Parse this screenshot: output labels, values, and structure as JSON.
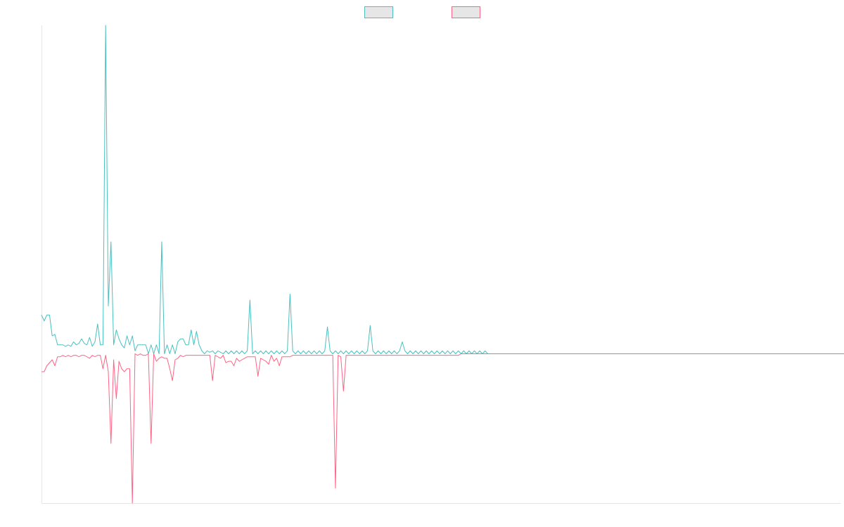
{
  "chart_data": {
    "type": "line",
    "title": "",
    "xlabel": "",
    "ylabel": "",
    "grid": false,
    "legend": "top-center",
    "x_count": 300,
    "ylim": [
      -100,
      220
    ],
    "series": [
      {
        "color": "#4bc0c0",
        "fill": "#e6e6e6",
        "values": [
          26,
          22,
          26,
          26,
          12,
          13,
          6,
          6,
          6,
          5,
          6,
          5,
          8,
          6,
          7,
          10,
          7,
          6,
          11,
          5,
          8,
          20,
          6,
          6,
          220,
          32,
          75,
          6,
          16,
          10,
          6,
          4,
          12,
          6,
          12,
          2,
          6,
          6,
          6,
          6,
          0,
          6,
          0,
          6,
          0,
          75,
          0,
          6,
          0,
          6,
          0,
          8,
          10,
          10,
          6,
          6,
          16,
          6,
          15,
          6,
          2,
          0,
          2,
          1,
          2,
          0,
          2,
          1,
          0,
          2,
          0,
          2,
          0,
          2,
          0,
          2,
          0,
          2,
          36,
          0,
          2,
          0,
          2,
          0,
          2,
          0,
          2,
          0,
          2,
          0,
          2,
          0,
          2,
          40,
          2,
          0,
          2,
          0,
          2,
          0,
          2,
          0,
          2,
          0,
          2,
          0,
          2,
          18,
          2,
          0,
          2,
          0,
          2,
          0,
          2,
          0,
          2,
          0,
          2,
          0,
          2,
          0,
          2,
          19,
          2,
          0,
          2,
          0,
          2,
          0,
          2,
          0,
          2,
          0,
          2,
          8,
          2,
          0,
          2,
          0,
          2,
          0,
          2,
          0,
          2,
          0,
          2,
          0,
          2,
          0,
          2,
          0,
          2,
          0,
          2,
          0,
          2,
          0,
          2,
          0,
          2,
          0,
          2,
          0,
          2,
          0,
          2,
          0,
          0,
          0,
          0,
          0,
          0,
          0,
          0,
          0,
          0,
          0,
          0,
          0,
          0,
          0,
          0,
          0,
          0,
          0,
          0,
          0,
          0,
          0,
          0,
          0,
          0,
          0,
          0,
          0,
          0,
          0,
          0,
          0,
          0,
          0,
          0,
          0,
          0,
          0,
          0,
          0,
          0,
          0,
          0,
          0,
          0,
          0,
          0,
          0,
          0,
          0,
          0,
          0,
          0,
          0,
          0,
          0,
          0,
          0,
          0,
          0,
          0,
          0,
          0,
          0,
          0,
          0,
          0,
          0,
          0,
          0,
          0,
          0,
          0,
          0,
          0,
          0,
          0,
          0,
          0,
          0,
          0,
          0,
          0,
          0,
          0,
          0,
          0,
          0,
          0,
          0,
          0,
          0,
          0,
          0,
          0,
          0,
          0,
          0,
          0,
          0,
          0,
          0,
          0,
          0,
          0,
          0,
          0,
          0,
          0,
          0,
          0,
          0,
          0,
          0,
          0,
          0,
          0,
          0,
          0,
          0,
          0,
          0,
          0,
          0,
          0,
          0,
          0,
          0,
          0,
          0,
          0,
          0,
          0,
          0,
          0,
          0,
          0,
          0,
          0,
          0,
          0,
          0,
          0,
          0,
          0,
          0,
          0,
          0,
          0,
          0,
          0,
          0
        ]
      },
      {
        "color": "#ff6384",
        "fill": "#e6e6e6",
        "values": [
          -12,
          -12,
          -8,
          -6,
          -4,
          -8,
          -2,
          -2,
          -1,
          -2,
          -1,
          -2,
          -1,
          -1,
          -2,
          -1,
          -1,
          -2,
          -3,
          -1,
          -2,
          -1,
          -1,
          -10,
          -1,
          -12,
          -60,
          -4,
          -30,
          -5,
          -10,
          -12,
          -10,
          -10,
          -100,
          0,
          -1,
          0,
          -1,
          -1,
          0,
          -60,
          0,
          -5,
          -3,
          -2,
          -3,
          -3,
          -10,
          -18,
          -4,
          -3,
          -1,
          -2,
          -1,
          -1,
          -1,
          -1,
          -1,
          -1,
          -1,
          -1,
          -1,
          -1,
          -18,
          -1,
          -2,
          -3,
          -1,
          -6,
          -5,
          -5,
          -8,
          -3,
          -5,
          -4,
          -3,
          -2,
          -2,
          -2,
          -2,
          -15,
          -3,
          -4,
          -5,
          -7,
          -1,
          -5,
          -3,
          -8,
          -2,
          -2,
          -2,
          -2,
          -1,
          -1,
          -1,
          -1,
          -1,
          -1,
          -1,
          -1,
          -1,
          -1,
          -1,
          -1,
          -1,
          -1,
          -1,
          -1,
          -90,
          -1,
          -2,
          -25,
          -1,
          -1,
          -1,
          -1,
          -1,
          -1,
          -1,
          -1,
          -1,
          -1,
          -1,
          -1,
          -1,
          -1,
          -1,
          -1,
          -1,
          -1,
          -1,
          -1,
          -1,
          -1,
          -1,
          -1,
          -1,
          -1,
          -1,
          -1,
          -1,
          -1,
          -1,
          -1,
          -1,
          -1,
          -1,
          -1,
          -1,
          -1,
          -1,
          -1,
          -1,
          -1,
          -1,
          0,
          0,
          0,
          0,
          0,
          0,
          0,
          0,
          0,
          0,
          0,
          0,
          0,
          0,
          0,
          0,
          0,
          0,
          0,
          0,
          0,
          0,
          0,
          0,
          0,
          0,
          0,
          0,
          0,
          0,
          0,
          0,
          0,
          0,
          0,
          0,
          0,
          0,
          0,
          0,
          0,
          0,
          0,
          0,
          0,
          0,
          0,
          0,
          0,
          0,
          0,
          0,
          0,
          0,
          0,
          0,
          0,
          0,
          0,
          0,
          0,
          0,
          0,
          0,
          0,
          0,
          0,
          0,
          0,
          0,
          0,
          0,
          0,
          0,
          0,
          0,
          0,
          0,
          0,
          0,
          0,
          0,
          0,
          0,
          0,
          0,
          0,
          0,
          0,
          0,
          0,
          0,
          0,
          0,
          0,
          0,
          0,
          0,
          0,
          0,
          0,
          0,
          0,
          0,
          0,
          0,
          0,
          0,
          0,
          0,
          0,
          0,
          0,
          0,
          0,
          0,
          0,
          0,
          0,
          0,
          0,
          0,
          0,
          0,
          0,
          0,
          0,
          0,
          0,
          0,
          0,
          0,
          0,
          0,
          0,
          0,
          0,
          0,
          0,
          0,
          0,
          0,
          0,
          0,
          0,
          0,
          0,
          0,
          0,
          0,
          0,
          0,
          0,
          0,
          0
        ]
      }
    ]
  }
}
